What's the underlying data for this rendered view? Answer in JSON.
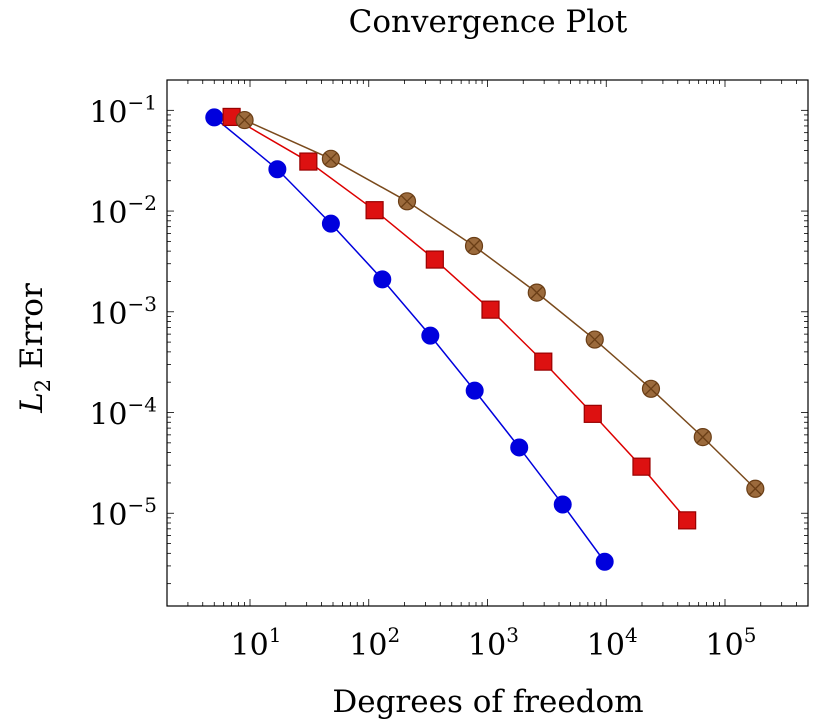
{
  "chart_data": {
    "type": "line",
    "title": "Convergence Plot",
    "xlabel": "Degrees of freedom",
    "ylabel_main": "L",
    "ylabel_sub": "2",
    "ylabel_rest": " Error",
    "xscale": "log",
    "yscale": "log",
    "xlim": [
      2,
      500000
    ],
    "ylim": [
      1.2e-06,
      0.2
    ],
    "x_ticks": [
      {
        "value": 10,
        "base": "10",
        "exp": "1"
      },
      {
        "value": 100,
        "base": "10",
        "exp": "2"
      },
      {
        "value": 1000,
        "base": "10",
        "exp": "3"
      },
      {
        "value": 10000,
        "base": "10",
        "exp": "4"
      },
      {
        "value": 100000,
        "base": "10",
        "exp": "5"
      }
    ],
    "y_ticks": [
      {
        "value": 0.1,
        "base": "10",
        "exp": "−1"
      },
      {
        "value": 0.01,
        "base": "10",
        "exp": "−2"
      },
      {
        "value": 0.001,
        "base": "10",
        "exp": "−3"
      },
      {
        "value": 0.0001,
        "base": "10",
        "exp": "−4"
      },
      {
        "value": 1e-05,
        "base": "10",
        "exp": "−5"
      }
    ],
    "grid": false,
    "legend": "none",
    "series": [
      {
        "color": "#0000dd",
        "marker": "circle",
        "x": [
          5,
          17,
          48,
          130,
          330,
          780,
          1850,
          4300,
          9700
        ],
        "y": [
          0.085,
          0.026,
          0.0075,
          0.0021,
          0.00058,
          0.000165,
          4.5e-05,
          1.22e-05,
          3.3e-06
        ]
      },
      {
        "color": "#dd0000",
        "marker": "square",
        "x": [
          7,
          31,
          112,
          360,
          1060,
          2950,
          7700,
          19800,
          48000
        ],
        "y": [
          0.086,
          0.031,
          0.0102,
          0.0033,
          0.00105,
          0.00032,
          9.7e-05,
          2.9e-05,
          8.5e-06
        ],
        "fill": "#dd1111",
        "stroke": "#990000"
      },
      {
        "color": "#7a4a1c",
        "marker": "circle-x",
        "x": [
          9,
          48,
          210,
          770,
          2600,
          8000,
          23800,
          65000,
          180000
        ],
        "y": [
          0.08,
          0.033,
          0.0125,
          0.0045,
          0.00155,
          0.00053,
          0.000172,
          5.7e-05,
          1.75e-05
        ],
        "fill": "#9b6a3c",
        "stroke": "#6a3e16"
      }
    ]
  }
}
